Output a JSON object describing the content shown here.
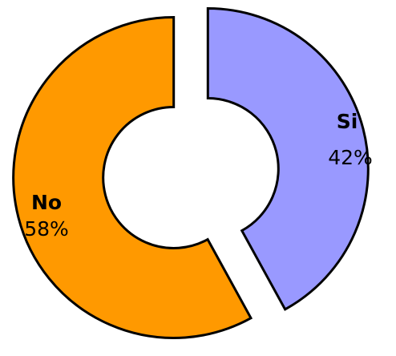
{
  "chart_data": {
    "type": "pie",
    "style": "exploded donut",
    "slices": [
      {
        "label": "No",
        "value": 58,
        "value_label": "58%",
        "color": "#ff9900"
      },
      {
        "label": "Si",
        "value": 42,
        "value_label": "42%",
        "color": "#9999ff"
      }
    ],
    "outline_color": "#000000",
    "legend": "none"
  }
}
